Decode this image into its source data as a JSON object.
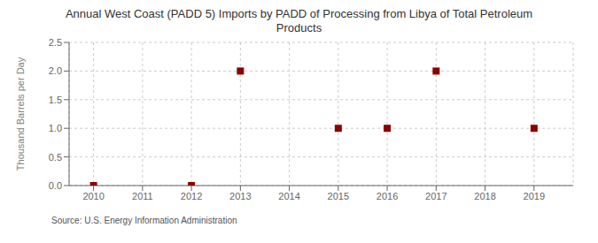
{
  "chart_data": {
    "type": "scatter",
    "title": "Annual West Coast (PADD 5) Imports by PADD of Processing from Libya of Total Petroleum\nProducts",
    "ylabel": "Thousand Barrels per Day",
    "annotations": [
      "Source: U.S. Energy Information Administration"
    ],
    "x": [
      2010,
      2012,
      2013,
      2015,
      2016,
      2017,
      2019
    ],
    "values": [
      0.0,
      0.0,
      2.0,
      1.0,
      1.0,
      2.0,
      1.0
    ],
    "color": "#8b0000",
    "marker": "square",
    "xlim": [
      2009.5,
      2019.8
    ],
    "ylim": [
      0,
      2.5
    ],
    "xticks": [
      2010,
      2011,
      2012,
      2013,
      2014,
      2015,
      2016,
      2017,
      2018,
      2019
    ],
    "yticks": [
      {
        "value": 0.0,
        "label": "0.0"
      },
      0.5,
      {
        "value": 1.0,
        "label": "1.0"
      },
      1.5,
      {
        "value": 2.0,
        "label": "2.0"
      },
      2.5
    ],
    "grid": true
  }
}
